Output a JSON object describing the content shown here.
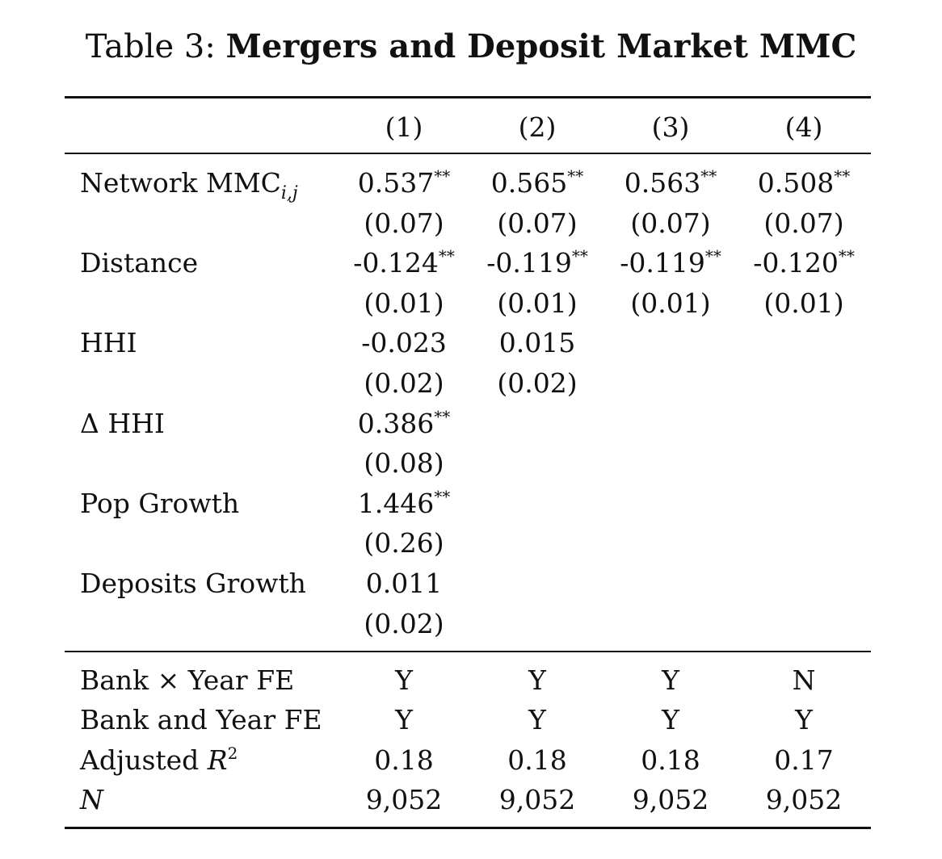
{
  "caption": {
    "prefix": "Table 3:",
    "title": "Mergers and Deposit Market MMC"
  },
  "columns": [
    "(1)",
    "(2)",
    "(3)",
    "(4)"
  ],
  "rows": [
    {
      "label": "Network MMC",
      "label_sub": "i,j",
      "cells": [
        {
          "v": "0.537",
          "s": "**"
        },
        {
          "v": "0.565",
          "s": "**"
        },
        {
          "v": "0.563",
          "s": "**"
        },
        {
          "v": "0.508",
          "s": "**"
        }
      ]
    },
    {
      "label": "",
      "cells": [
        {
          "v": "(0.07)",
          "s": ""
        },
        {
          "v": "(0.07)",
          "s": ""
        },
        {
          "v": "(0.07)",
          "s": ""
        },
        {
          "v": "(0.07)",
          "s": ""
        }
      ]
    },
    {
      "label": "Distance",
      "cells": [
        {
          "v": "-0.124",
          "s": "**"
        },
        {
          "v": "-0.119",
          "s": "**"
        },
        {
          "v": "-0.119",
          "s": "**"
        },
        {
          "v": "-0.120",
          "s": "**"
        }
      ]
    },
    {
      "label": "",
      "cells": [
        {
          "v": "(0.01)",
          "s": ""
        },
        {
          "v": "(0.01)",
          "s": ""
        },
        {
          "v": "(0.01)",
          "s": ""
        },
        {
          "v": "(0.01)",
          "s": ""
        }
      ]
    },
    {
      "label": "HHI",
      "cells": [
        {
          "v": "-0.023",
          "s": ""
        },
        {
          "v": "0.015",
          "s": ""
        },
        {
          "v": "",
          "s": ""
        },
        {
          "v": "",
          "s": ""
        }
      ]
    },
    {
      "label": "",
      "cells": [
        {
          "v": "(0.02)",
          "s": ""
        },
        {
          "v": "(0.02)",
          "s": ""
        },
        {
          "v": "",
          "s": ""
        },
        {
          "v": "",
          "s": ""
        }
      ]
    },
    {
      "label": "Δ HHI",
      "cells": [
        {
          "v": "0.386",
          "s": "**"
        },
        {
          "v": "",
          "s": ""
        },
        {
          "v": "",
          "s": ""
        },
        {
          "v": "",
          "s": ""
        }
      ]
    },
    {
      "label": "",
      "cells": [
        {
          "v": "(0.08)",
          "s": ""
        },
        {
          "v": "",
          "s": ""
        },
        {
          "v": "",
          "s": ""
        },
        {
          "v": "",
          "s": ""
        }
      ]
    },
    {
      "label": "Pop Growth",
      "cells": [
        {
          "v": "1.446",
          "s": "**"
        },
        {
          "v": "",
          "s": ""
        },
        {
          "v": "",
          "s": ""
        },
        {
          "v": "",
          "s": ""
        }
      ]
    },
    {
      "label": "",
      "cells": [
        {
          "v": "(0.26)",
          "s": ""
        },
        {
          "v": "",
          "s": ""
        },
        {
          "v": "",
          "s": ""
        },
        {
          "v": "",
          "s": ""
        }
      ]
    },
    {
      "label": "Deposits Growth",
      "cells": [
        {
          "v": "0.011",
          "s": ""
        },
        {
          "v": "",
          "s": ""
        },
        {
          "v": "",
          "s": ""
        },
        {
          "v": "",
          "s": ""
        }
      ]
    },
    {
      "label": "",
      "cells": [
        {
          "v": "(0.02)",
          "s": ""
        },
        {
          "v": "",
          "s": ""
        },
        {
          "v": "",
          "s": ""
        },
        {
          "v": "",
          "s": ""
        }
      ]
    }
  ],
  "footer_rows": [
    {
      "label": "Bank × Year FE",
      "cells": [
        "Y",
        "Y",
        "Y",
        "N"
      ]
    },
    {
      "label": "Bank and Year FE",
      "cells": [
        "Y",
        "Y",
        "Y",
        "Y"
      ]
    },
    {
      "label": "Adjusted R",
      "label_sup": "2",
      "label_italic_part": "R",
      "cells": [
        "0.18",
        "0.18",
        "0.18",
        "0.17"
      ]
    },
    {
      "label": "N",
      "italic": true,
      "cells": [
        "9,052",
        "9,052",
        "9,052",
        "9,052"
      ]
    }
  ]
}
